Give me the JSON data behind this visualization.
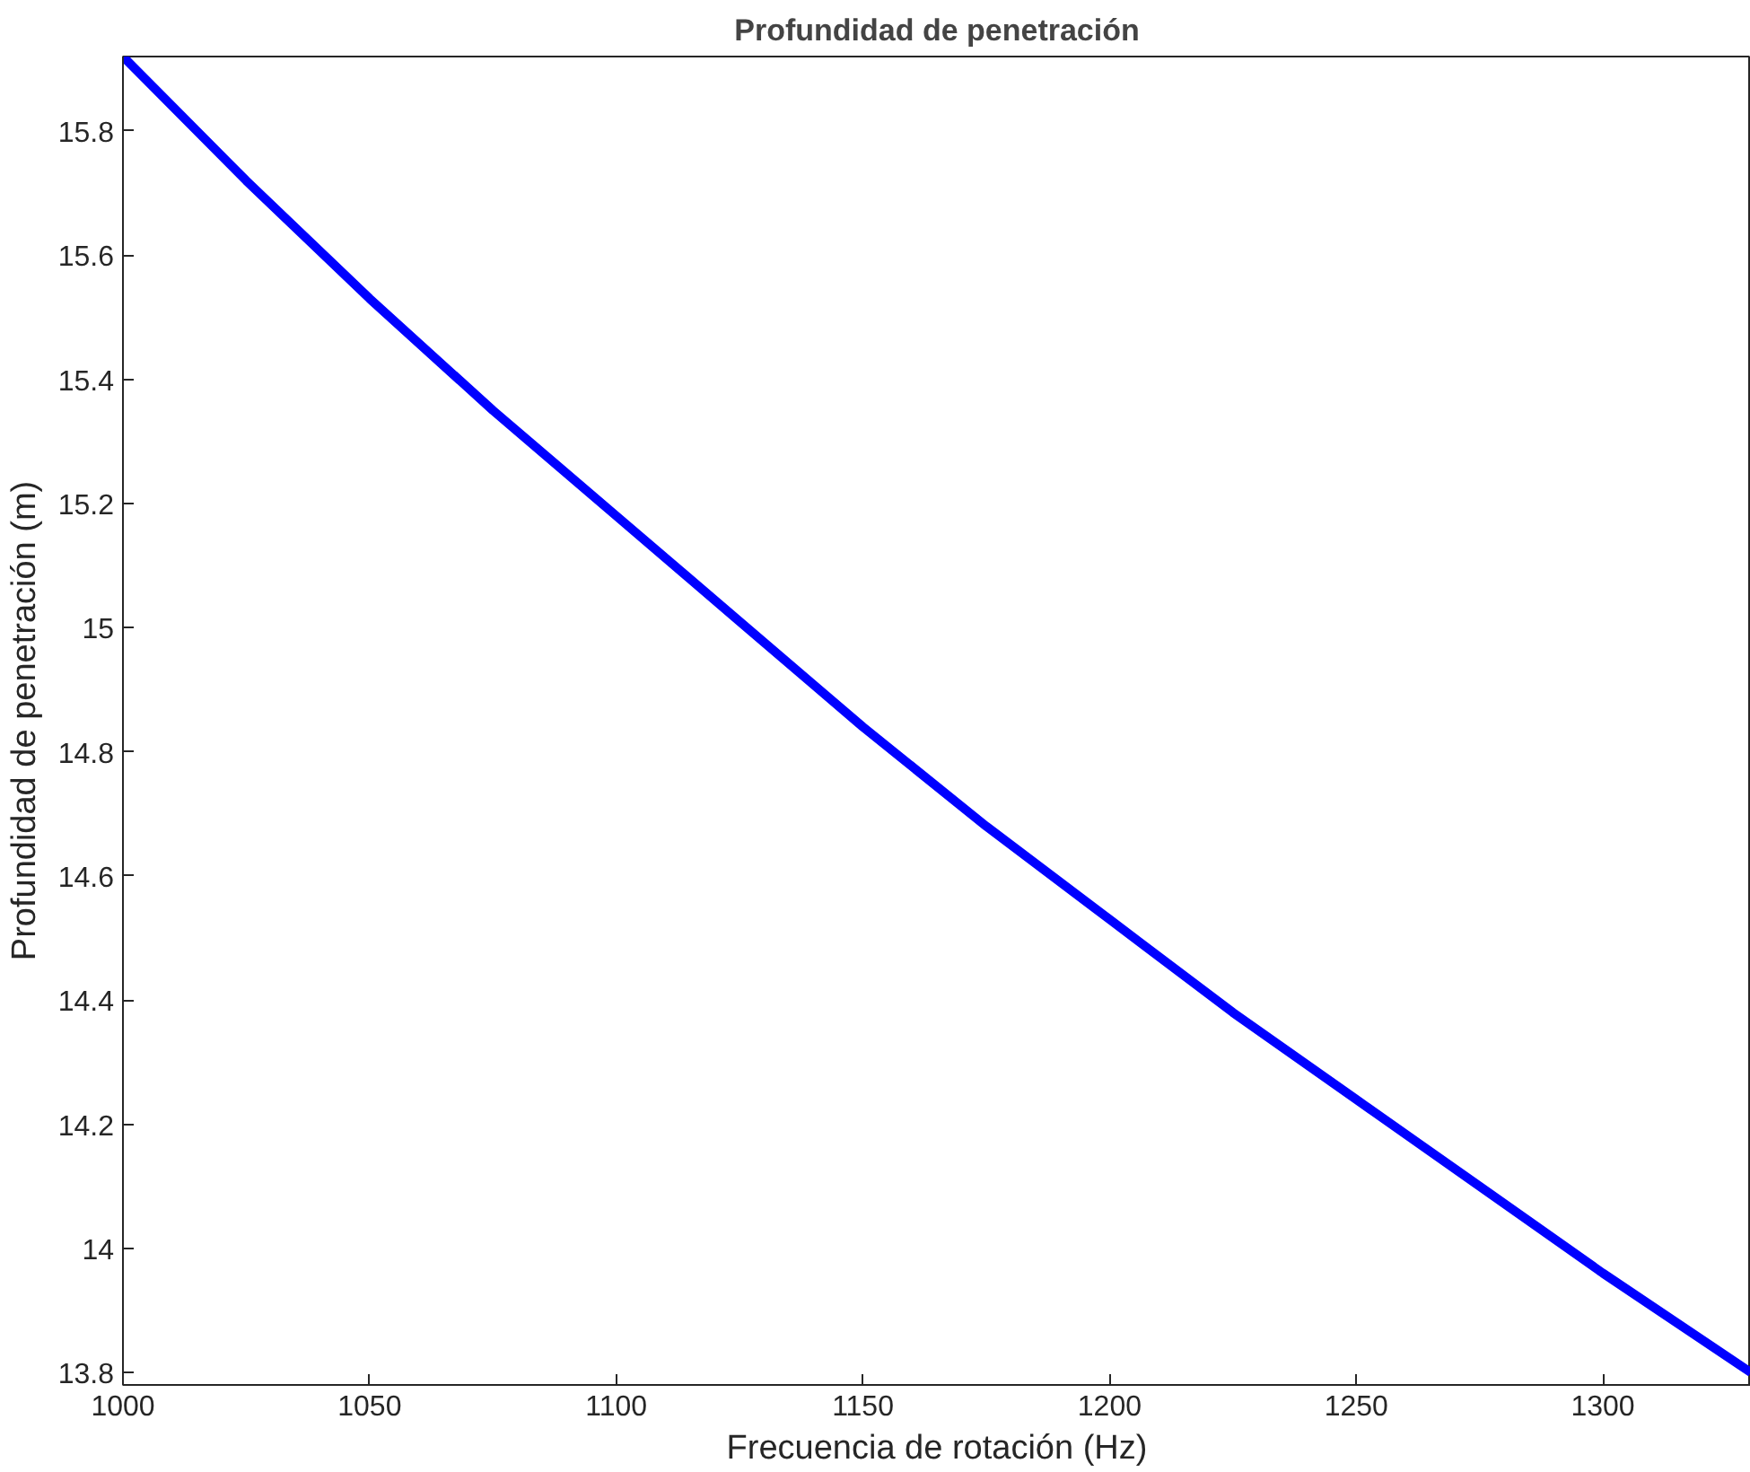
{
  "chart_data": {
    "type": "line",
    "title": "Profundidad de penetración",
    "xlabel": "Frecuencia de rotación (Hz)",
    "ylabel": "Profundidad de penetración (m)",
    "x": [
      1000,
      1025,
      1050,
      1075,
      1100,
      1125,
      1150,
      1175,
      1200,
      1225,
      1250,
      1275,
      1300,
      1330
    ],
    "series": [
      {
        "color": "#0000ff",
        "values": [
          15.92,
          15.72,
          15.53,
          15.35,
          15.18,
          15.01,
          14.84,
          14.68,
          14.53,
          14.38,
          14.24,
          14.1,
          13.96,
          13.8
        ]
      }
    ],
    "xlim": [
      1000,
      1330
    ],
    "ylim": [
      13.78,
      15.92
    ],
    "xticks": [
      1000,
      1050,
      1100,
      1150,
      1200,
      1250,
      1300
    ],
    "yticks": [
      13.8,
      14,
      14.2,
      14.4,
      14.6,
      14.8,
      15,
      15.2,
      15.4,
      15.6,
      15.8
    ],
    "grid": false,
    "marker": "none",
    "line_style": "solid"
  }
}
